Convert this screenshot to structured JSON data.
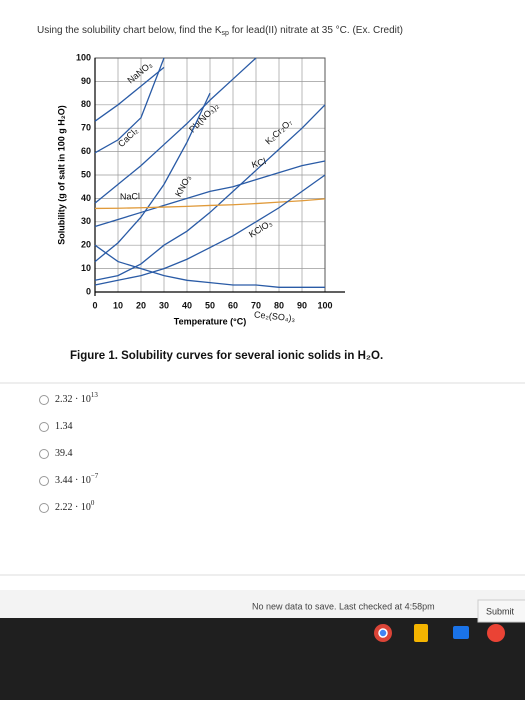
{
  "question": {
    "parts": [
      "Using the solubility chart below, find the K",
      "sp",
      " for lead(II) nitrate at 35 °C. (Ex. Credit)"
    ]
  },
  "chart_data": {
    "type": "line",
    "x_label": "Temperature (°C)",
    "y_label": "Solubility (g of salt in 100 g H₂O)",
    "x": [
      0,
      10,
      20,
      30,
      40,
      50,
      60,
      70,
      80,
      90,
      100
    ],
    "xlim": [
      0,
      100
    ],
    "ylim": [
      0,
      100
    ],
    "xticks": [
      0,
      10,
      20,
      30,
      40,
      50,
      60,
      70,
      80,
      90,
      100
    ],
    "yticks": [
      0,
      10,
      20,
      30,
      40,
      50,
      60,
      70,
      80,
      90,
      100
    ],
    "grid": true,
    "series": [
      {
        "name": "NaNO₃",
        "color": "#2a5ba6",
        "values": [
          73,
          80,
          88,
          96,
          null,
          null,
          null,
          null,
          null,
          null,
          null
        ]
      },
      {
        "name": "CaCl₂",
        "color": "#2a5ba6",
        "values": [
          59.5,
          65,
          74.5,
          100,
          null,
          null,
          null,
          null,
          null,
          null,
          null
        ]
      },
      {
        "name": "Pb(NO₃)₂",
        "color": "#2a5ba6",
        "values": [
          38,
          46,
          54,
          63,
          72,
          82,
          91,
          100,
          null,
          null,
          null
        ]
      },
      {
        "name": "KNO₃",
        "color": "#2a5ba6",
        "values": [
          13,
          21,
          32,
          46,
          64,
          85,
          null,
          null,
          null,
          null,
          null
        ]
      },
      {
        "name": "K₂Cr₂O₇",
        "color": "#2a5ba6",
        "values": [
          5,
          7,
          12,
          20,
          26,
          34,
          43,
          52,
          61,
          70,
          80
        ]
      },
      {
        "name": "KCl",
        "color": "#2a5ba6",
        "values": [
          28,
          31,
          34,
          37,
          40,
          43,
          45,
          48,
          51,
          54,
          56
        ]
      },
      {
        "name": "NaCl",
        "color": "#e09a3a",
        "values": [
          35.7,
          35.8,
          36,
          36.3,
          36.6,
          37,
          37.3,
          37.8,
          38.4,
          39,
          39.8
        ]
      },
      {
        "name": "KClO₃",
        "color": "#2a5ba6",
        "values": [
          3,
          5,
          7,
          10,
          14,
          19,
          24,
          30,
          36,
          43,
          50
        ]
      },
      {
        "name": "Ce₂(SO₄)₃",
        "color": "#2a5ba6",
        "values": [
          20,
          13,
          10,
          7,
          5,
          4,
          3,
          3,
          2,
          2,
          2
        ]
      }
    ]
  },
  "caption": "Figure 1. Solubility curves for several ionic solids in H₂O.",
  "options": [
    {
      "text": "2.32 · 10",
      "sup": "13"
    },
    {
      "text": "1.34"
    },
    {
      "text": "39.4"
    },
    {
      "text": "3.44 · 10",
      "sup": "−7"
    },
    {
      "text": "2.22 · 10",
      "sup": "0"
    }
  ],
  "footer": {
    "status": "No new data to save. Last checked at 4:58pm",
    "button": "Submit"
  }
}
